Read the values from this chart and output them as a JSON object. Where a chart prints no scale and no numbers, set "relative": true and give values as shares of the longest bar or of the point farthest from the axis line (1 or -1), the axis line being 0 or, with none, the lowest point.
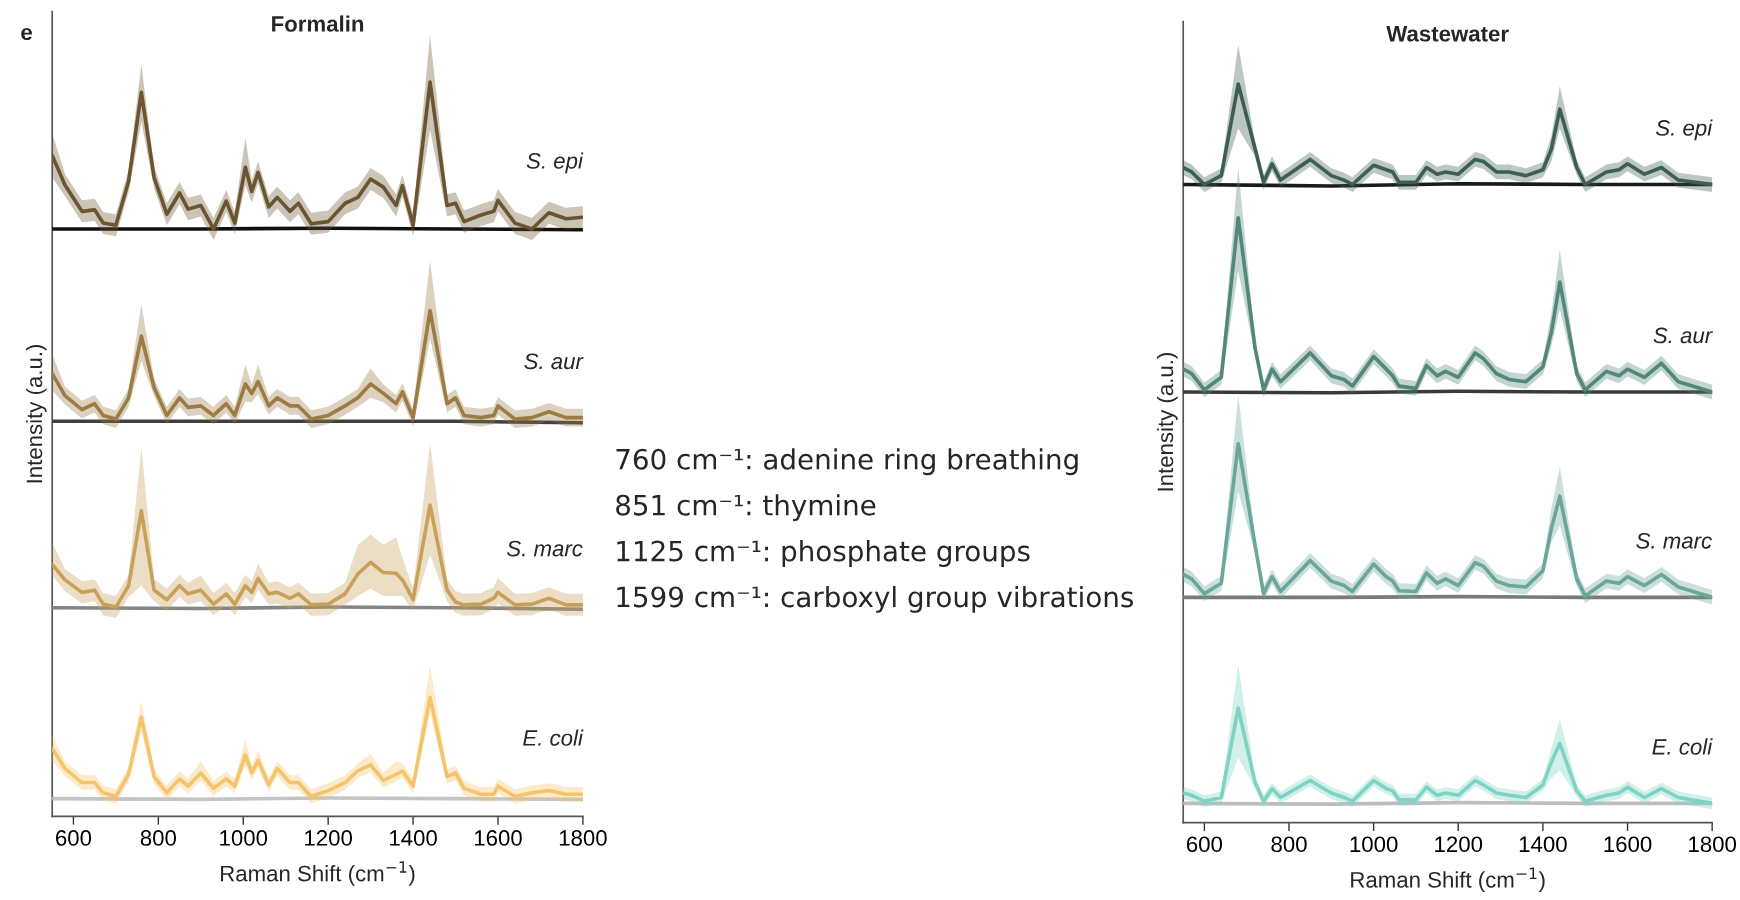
{
  "chart_data": [
    {
      "type": "line",
      "title": "Formalin",
      "xlabel": "Raman Shift (cm$^{−1}$)",
      "ylabel": "Intensity (a.u.)",
      "relative": true,
      "xlim": [
        550,
        1800
      ],
      "xticks": [
        600,
        800,
        1000,
        1200,
        1400,
        1600,
        1800
      ],
      "grid": false,
      "legend": false,
      "annotations": [
        "e",
        "760 cm⁻¹: adenine ring breathing",
        "851 cm⁻¹: thymine",
        "1125 cm⁻¹: phosphate groups",
        "1599 cm⁻¹: carboxyl group vibrations"
      ],
      "x": [
        550,
        580,
        620,
        650,
        670,
        700,
        730,
        760,
        790,
        820,
        850,
        870,
        900,
        930,
        960,
        980,
        1005,
        1020,
        1035,
        1060,
        1080,
        1110,
        1130,
        1160,
        1200,
        1240,
        1270,
        1300,
        1330,
        1360,
        1375,
        1400,
        1440,
        1480,
        1500,
        1520,
        1560,
        1590,
        1600,
        1640,
        1680,
        1720,
        1760,
        1800
      ],
      "series": [
        {
          "color": "#111111",
          "x": [
            550,
            900,
            1200,
            1500,
            1800
          ],
          "values": [
            0.8,
            0.8,
            0.801,
            0.8,
            0.799
          ]
        },
        {
          "color": "#404040",
          "x": [
            550,
            900,
            1200,
            1500,
            1800
          ],
          "values": [
            0.538,
            0.538,
            0.538,
            0.538,
            0.536
          ]
        },
        {
          "color": "#858585",
          "x": [
            550,
            900,
            1200,
            1500,
            1800
          ],
          "values": [
            0.284,
            0.283,
            0.285,
            0.284,
            0.282
          ]
        },
        {
          "color": "#c4c4c4",
          "x": [
            550,
            900,
            1200,
            1500,
            1800
          ],
          "values": [
            0.024,
            0.023,
            0.025,
            0.024,
            0.023
          ]
        },
        {
          "name": "S. epi",
          "color": "#6b5530",
          "values": [
            0.9,
            0.86,
            0.824,
            0.826,
            0.808,
            0.805,
            0.865,
            0.986,
            0.87,
            0.82,
            0.849,
            0.827,
            0.832,
            0.8,
            0.838,
            0.808,
            0.884,
            0.851,
            0.877,
            0.83,
            0.843,
            0.824,
            0.835,
            0.807,
            0.81,
            0.835,
            0.843,
            0.868,
            0.857,
            0.832,
            0.859,
            0.805,
            1.0,
            0.832,
            0.835,
            0.81,
            0.819,
            0.824,
            0.839,
            0.808,
            0.8,
            0.822,
            0.814,
            0.816
          ],
          "lower": [
            0.87,
            0.845,
            0.809,
            0.811,
            0.793,
            0.79,
            0.85,
            0.946,
            0.855,
            0.805,
            0.834,
            0.812,
            0.817,
            0.785,
            0.823,
            0.793,
            0.86,
            0.836,
            0.862,
            0.815,
            0.828,
            0.809,
            0.82,
            0.792,
            0.795,
            0.82,
            0.828,
            0.853,
            0.842,
            0.817,
            0.844,
            0.79,
            0.935,
            0.817,
            0.82,
            0.795,
            0.804,
            0.809,
            0.824,
            0.793,
            0.785,
            0.807,
            0.799,
            0.801
          ],
          "upper": [
            0.93,
            0.875,
            0.839,
            0.841,
            0.823,
            0.82,
            0.88,
            1.024,
            0.885,
            0.835,
            0.864,
            0.842,
            0.847,
            0.815,
            0.853,
            0.823,
            0.924,
            0.866,
            0.892,
            0.845,
            0.858,
            0.839,
            0.85,
            0.822,
            0.825,
            0.85,
            0.858,
            0.883,
            0.872,
            0.847,
            0.874,
            0.82,
            1.064,
            0.847,
            0.85,
            0.825,
            0.834,
            0.839,
            0.854,
            0.823,
            0.815,
            0.837,
            0.829,
            0.831
          ]
        },
        {
          "name": "S. aur",
          "color": "#9c7c45",
          "values": [
            0.603,
            0.573,
            0.554,
            0.562,
            0.546,
            0.541,
            0.57,
            0.654,
            0.584,
            0.546,
            0.57,
            0.557,
            0.559,
            0.546,
            0.562,
            0.546,
            0.589,
            0.576,
            0.592,
            0.559,
            0.57,
            0.559,
            0.559,
            0.541,
            0.546,
            0.559,
            0.57,
            0.589,
            0.576,
            0.562,
            0.578,
            0.543,
            0.689,
            0.562,
            0.57,
            0.546,
            0.543,
            0.546,
            0.559,
            0.541,
            0.543,
            0.551,
            0.543,
            0.543
          ],
          "lower": [
            0.58,
            0.561,
            0.542,
            0.55,
            0.534,
            0.529,
            0.558,
            0.62,
            0.572,
            0.534,
            0.558,
            0.545,
            0.547,
            0.534,
            0.55,
            0.534,
            0.565,
            0.564,
            0.575,
            0.547,
            0.558,
            0.547,
            0.547,
            0.529,
            0.534,
            0.547,
            0.558,
            0.57,
            0.564,
            0.55,
            0.566,
            0.531,
            0.65,
            0.55,
            0.558,
            0.534,
            0.531,
            0.534,
            0.547,
            0.529,
            0.531,
            0.539,
            0.531,
            0.531
          ],
          "upper": [
            0.63,
            0.585,
            0.566,
            0.574,
            0.558,
            0.553,
            0.582,
            0.697,
            0.596,
            0.558,
            0.582,
            0.569,
            0.571,
            0.558,
            0.574,
            0.558,
            0.615,
            0.588,
            0.615,
            0.571,
            0.582,
            0.571,
            0.571,
            0.553,
            0.558,
            0.571,
            0.582,
            0.61,
            0.588,
            0.574,
            0.59,
            0.555,
            0.757,
            0.574,
            0.582,
            0.558,
            0.555,
            0.558,
            0.571,
            0.553,
            0.555,
            0.563,
            0.555,
            0.555
          ]
        },
        {
          "name": "S. marc",
          "color": "#c9a05a",
          "values": [
            0.343,
            0.322,
            0.305,
            0.308,
            0.289,
            0.285,
            0.314,
            0.416,
            0.308,
            0.295,
            0.314,
            0.303,
            0.308,
            0.289,
            0.303,
            0.289,
            0.314,
            0.305,
            0.324,
            0.303,
            0.305,
            0.297,
            0.303,
            0.288,
            0.289,
            0.303,
            0.33,
            0.346,
            0.332,
            0.331,
            0.322,
            0.295,
            0.424,
            0.308,
            0.292,
            0.288,
            0.289,
            0.297,
            0.305,
            0.288,
            0.289,
            0.297,
            0.288,
            0.288
          ],
          "lower": [
            0.328,
            0.307,
            0.29,
            0.293,
            0.274,
            0.27,
            0.299,
            0.314,
            0.293,
            0.28,
            0.299,
            0.288,
            0.293,
            0.274,
            0.288,
            0.274,
            0.299,
            0.29,
            0.309,
            0.288,
            0.29,
            0.282,
            0.288,
            0.273,
            0.274,
            0.288,
            0.3,
            0.31,
            0.3,
            0.3,
            0.3,
            0.28,
            0.357,
            0.293,
            0.277,
            0.273,
            0.274,
            0.282,
            0.29,
            0.273,
            0.274,
            0.282,
            0.273,
            0.273
          ],
          "upper": [
            0.373,
            0.337,
            0.32,
            0.323,
            0.304,
            0.3,
            0.329,
            0.503,
            0.323,
            0.31,
            0.329,
            0.318,
            0.328,
            0.304,
            0.318,
            0.304,
            0.329,
            0.32,
            0.344,
            0.318,
            0.32,
            0.312,
            0.318,
            0.303,
            0.304,
            0.318,
            0.37,
            0.384,
            0.37,
            0.38,
            0.352,
            0.31,
            0.508,
            0.323,
            0.307,
            0.303,
            0.304,
            0.312,
            0.325,
            0.303,
            0.304,
            0.312,
            0.303,
            0.303
          ]
        },
        {
          "name": "E. coli",
          "color": "#f5c46a",
          "values": [
            0.092,
            0.065,
            0.046,
            0.046,
            0.032,
            0.027,
            0.057,
            0.135,
            0.054,
            0.032,
            0.051,
            0.041,
            0.059,
            0.038,
            0.051,
            0.041,
            0.084,
            0.059,
            0.076,
            0.043,
            0.065,
            0.046,
            0.046,
            0.027,
            0.035,
            0.046,
            0.062,
            0.07,
            0.049,
            0.057,
            0.062,
            0.041,
            0.162,
            0.054,
            0.059,
            0.038,
            0.03,
            0.03,
            0.041,
            0.027,
            0.032,
            0.035,
            0.03,
            0.03
          ],
          "lower": [
            0.075,
            0.055,
            0.036,
            0.036,
            0.022,
            0.017,
            0.047,
            0.115,
            0.044,
            0.022,
            0.041,
            0.031,
            0.049,
            0.028,
            0.041,
            0.031,
            0.07,
            0.049,
            0.066,
            0.033,
            0.055,
            0.036,
            0.036,
            0.017,
            0.025,
            0.036,
            0.052,
            0.06,
            0.039,
            0.047,
            0.052,
            0.031,
            0.14,
            0.044,
            0.049,
            0.028,
            0.02,
            0.02,
            0.031,
            0.017,
            0.022,
            0.025,
            0.02,
            0.02
          ],
          "upper": [
            0.11,
            0.075,
            0.056,
            0.056,
            0.042,
            0.037,
            0.067,
            0.157,
            0.064,
            0.042,
            0.061,
            0.051,
            0.075,
            0.048,
            0.061,
            0.051,
            0.105,
            0.069,
            0.09,
            0.053,
            0.075,
            0.056,
            0.056,
            0.037,
            0.045,
            0.056,
            0.072,
            0.085,
            0.059,
            0.075,
            0.072,
            0.051,
            0.205,
            0.064,
            0.069,
            0.048,
            0.04,
            0.04,
            0.051,
            0.037,
            0.042,
            0.045,
            0.04,
            0.04
          ]
        }
      ]
    },
    {
      "type": "line",
      "title": "Wastewater",
      "xlabel": "Raman Shift (cm$^{−1}$)",
      "ylabel": "Intensity (a.u.)",
      "relative": true,
      "xlim": [
        550,
        1800
      ],
      "xticks": [
        600,
        800,
        1000,
        1200,
        1400,
        1600,
        1800
      ],
      "grid": false,
      "legend": false,
      "x": [
        550,
        570,
        600,
        640,
        680,
        720,
        740,
        760,
        780,
        850,
        900,
        930,
        950,
        1000,
        1030,
        1045,
        1060,
        1100,
        1125,
        1150,
        1170,
        1200,
        1240,
        1260,
        1290,
        1320,
        1360,
        1400,
        1420,
        1440,
        1480,
        1500,
        1550,
        1580,
        1600,
        1640,
        1680,
        1720,
        1800
      ],
      "series": [
        {
          "color": "#1a1a1a",
          "x": [
            550,
            900,
            1200,
            1500,
            1800
          ],
          "values": [
            0.864,
            0.862,
            0.865,
            0.864,
            0.864
          ]
        },
        {
          "color": "#3a3a3a",
          "x": [
            550,
            900,
            1200,
            1500,
            1800
          ],
          "values": [
            0.583,
            0.582,
            0.584,
            0.583,
            0.583
          ]
        },
        {
          "color": "#7a7a7a",
          "x": [
            550,
            900,
            1200,
            1500,
            1800
          ],
          "values": [
            0.305,
            0.305,
            0.306,
            0.305,
            0.305
          ]
        },
        {
          "color": "#bdbdbd",
          "x": [
            550,
            900,
            1200,
            1500,
            1800
          ],
          "values": [
            0.026,
            0.025,
            0.027,
            0.026,
            0.026
          ]
        },
        {
          "name": "S. epi",
          "color": "#3d5e55",
          "values": [
            0.887,
            0.881,
            0.864,
            0.876,
            1.0,
            0.912,
            0.867,
            0.892,
            0.87,
            0.898,
            0.876,
            0.87,
            0.864,
            0.89,
            0.884,
            0.881,
            0.867,
            0.867,
            0.887,
            0.878,
            0.881,
            0.878,
            0.898,
            0.895,
            0.881,
            0.881,
            0.876,
            0.884,
            0.912,
            0.966,
            0.887,
            0.864,
            0.881,
            0.884,
            0.892,
            0.878,
            0.887,
            0.87,
            0.864
          ],
          "lower": [
            0.877,
            0.871,
            0.854,
            0.866,
            0.94,
            0.902,
            0.857,
            0.882,
            0.86,
            0.888,
            0.866,
            0.86,
            0.854,
            0.88,
            0.874,
            0.871,
            0.857,
            0.857,
            0.877,
            0.868,
            0.871,
            0.868,
            0.888,
            0.885,
            0.871,
            0.871,
            0.866,
            0.874,
            0.895,
            0.94,
            0.877,
            0.854,
            0.871,
            0.874,
            0.882,
            0.868,
            0.877,
            0.86,
            0.854
          ],
          "upper": [
            0.897,
            0.891,
            0.874,
            0.886,
            1.053,
            0.922,
            0.877,
            0.902,
            0.88,
            0.908,
            0.886,
            0.88,
            0.874,
            0.9,
            0.894,
            0.891,
            0.877,
            0.877,
            0.897,
            0.888,
            0.891,
            0.888,
            0.908,
            0.905,
            0.891,
            0.891,
            0.886,
            0.894,
            0.93,
            0.997,
            0.897,
            0.874,
            0.891,
            0.894,
            0.902,
            0.888,
            0.897,
            0.88,
            0.874
          ]
        },
        {
          "name": "S. aur",
          "color": "#52877a",
          "values": [
            0.614,
            0.608,
            0.586,
            0.603,
            0.819,
            0.642,
            0.586,
            0.614,
            0.597,
            0.636,
            0.605,
            0.6,
            0.591,
            0.631,
            0.614,
            0.605,
            0.591,
            0.588,
            0.619,
            0.605,
            0.611,
            0.603,
            0.636,
            0.628,
            0.608,
            0.6,
            0.597,
            0.617,
            0.664,
            0.732,
            0.608,
            0.586,
            0.611,
            0.605,
            0.614,
            0.603,
            0.622,
            0.597,
            0.583
          ],
          "lower": [
            0.604,
            0.598,
            0.576,
            0.593,
            0.747,
            0.632,
            0.576,
            0.604,
            0.587,
            0.626,
            0.595,
            0.59,
            0.581,
            0.621,
            0.604,
            0.595,
            0.581,
            0.578,
            0.609,
            0.595,
            0.601,
            0.593,
            0.626,
            0.618,
            0.598,
            0.59,
            0.587,
            0.607,
            0.645,
            0.695,
            0.598,
            0.576,
            0.601,
            0.595,
            0.604,
            0.593,
            0.612,
            0.587,
            0.573
          ],
          "upper": [
            0.624,
            0.618,
            0.596,
            0.613,
            0.887,
            0.652,
            0.596,
            0.624,
            0.607,
            0.646,
            0.615,
            0.61,
            0.601,
            0.641,
            0.624,
            0.615,
            0.601,
            0.598,
            0.629,
            0.615,
            0.621,
            0.613,
            0.646,
            0.638,
            0.618,
            0.61,
            0.607,
            0.627,
            0.69,
            0.775,
            0.618,
            0.596,
            0.621,
            0.615,
            0.624,
            0.613,
            0.632,
            0.607,
            0.593
          ]
        },
        {
          "name": "S. marc",
          "color": "#6aa79a",
          "values": [
            0.336,
            0.33,
            0.31,
            0.324,
            0.513,
            0.375,
            0.31,
            0.333,
            0.313,
            0.355,
            0.327,
            0.321,
            0.313,
            0.35,
            0.333,
            0.327,
            0.314,
            0.313,
            0.338,
            0.324,
            0.33,
            0.321,
            0.352,
            0.347,
            0.327,
            0.321,
            0.319,
            0.341,
            0.398,
            0.442,
            0.33,
            0.307,
            0.327,
            0.324,
            0.333,
            0.321,
            0.336,
            0.319,
            0.305
          ],
          "lower": [
            0.326,
            0.32,
            0.3,
            0.314,
            0.448,
            0.365,
            0.3,
            0.323,
            0.303,
            0.345,
            0.317,
            0.311,
            0.303,
            0.34,
            0.323,
            0.317,
            0.304,
            0.303,
            0.328,
            0.314,
            0.32,
            0.311,
            0.342,
            0.337,
            0.317,
            0.311,
            0.309,
            0.331,
            0.38,
            0.402,
            0.32,
            0.297,
            0.317,
            0.314,
            0.323,
            0.311,
            0.326,
            0.309,
            0.295
          ],
          "upper": [
            0.346,
            0.34,
            0.32,
            0.334,
            0.58,
            0.385,
            0.32,
            0.343,
            0.323,
            0.365,
            0.337,
            0.331,
            0.323,
            0.36,
            0.343,
            0.337,
            0.324,
            0.323,
            0.348,
            0.334,
            0.34,
            0.331,
            0.362,
            0.357,
            0.337,
            0.331,
            0.329,
            0.351,
            0.425,
            0.482,
            0.34,
            0.317,
            0.337,
            0.334,
            0.343,
            0.331,
            0.346,
            0.329,
            0.315
          ]
        },
        {
          "name": "E. coli",
          "color": "#7fd3c4",
          "values": [
            0.04,
            0.037,
            0.029,
            0.034,
            0.155,
            0.054,
            0.029,
            0.046,
            0.034,
            0.057,
            0.04,
            0.034,
            0.029,
            0.057,
            0.046,
            0.043,
            0.031,
            0.031,
            0.048,
            0.037,
            0.04,
            0.037,
            0.057,
            0.051,
            0.04,
            0.037,
            0.034,
            0.051,
            0.082,
            0.107,
            0.043,
            0.029,
            0.037,
            0.04,
            0.048,
            0.034,
            0.046,
            0.034,
            0.026
          ],
          "lower": [
            0.032,
            0.029,
            0.021,
            0.026,
            0.088,
            0.046,
            0.021,
            0.038,
            0.026,
            0.049,
            0.032,
            0.026,
            0.021,
            0.049,
            0.038,
            0.035,
            0.023,
            0.023,
            0.04,
            0.029,
            0.032,
            0.029,
            0.049,
            0.043,
            0.032,
            0.029,
            0.026,
            0.043,
            0.06,
            0.071,
            0.035,
            0.021,
            0.029,
            0.032,
            0.04,
            0.026,
            0.038,
            0.026,
            0.018
          ],
          "upper": [
            0.048,
            0.045,
            0.037,
            0.042,
            0.214,
            0.062,
            0.037,
            0.054,
            0.042,
            0.065,
            0.048,
            0.042,
            0.037,
            0.065,
            0.054,
            0.051,
            0.039,
            0.039,
            0.056,
            0.045,
            0.048,
            0.045,
            0.065,
            0.059,
            0.048,
            0.045,
            0.042,
            0.059,
            0.1,
            0.141,
            0.051,
            0.037,
            0.045,
            0.048,
            0.056,
            0.042,
            0.054,
            0.042,
            0.034
          ]
        }
      ]
    }
  ]
}
